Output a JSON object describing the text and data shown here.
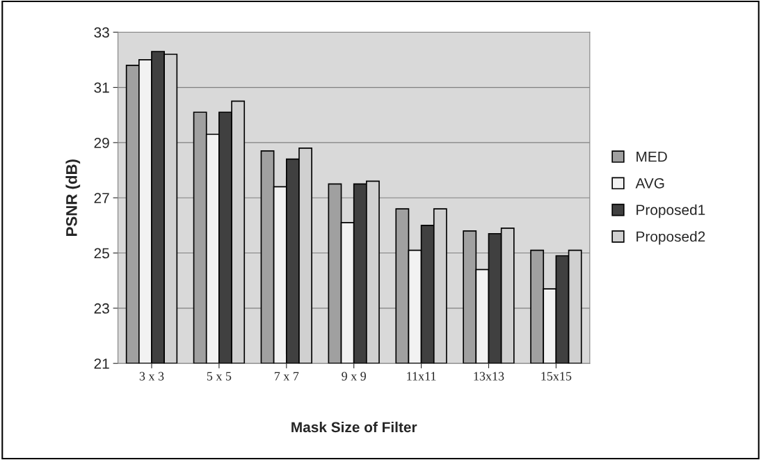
{
  "chart_data": {
    "type": "bar",
    "xlabel": "Mask Size of Filter",
    "ylabel": "PSNR (dB)",
    "categories": [
      "3 x 3",
      "5 x 5",
      "7 x 7",
      "9 x 9",
      "11x11",
      "13x13",
      "15x15"
    ],
    "series": [
      {
        "name": "MED",
        "color": "#a0a0a0",
        "values": [
          31.8,
          30.1,
          28.7,
          27.5,
          26.6,
          25.8,
          25.1
        ]
      },
      {
        "name": "AVG",
        "color": "#f2f2f2",
        "values": [
          32.0,
          29.3,
          27.4,
          26.1,
          25.1,
          24.4,
          23.7
        ]
      },
      {
        "name": "Proposed1",
        "color": "#404040",
        "values": [
          32.3,
          30.1,
          28.4,
          27.5,
          26.0,
          25.7,
          24.9
        ]
      },
      {
        "name": "Proposed2",
        "color": "#d0d0d0",
        "values": [
          32.2,
          30.5,
          28.8,
          27.6,
          26.6,
          25.9,
          25.1
        ]
      }
    ],
    "ylim": [
      21,
      33
    ],
    "yticks": [
      21,
      23,
      25,
      27,
      29,
      31,
      33
    ],
    "grid": "y",
    "legend": "right"
  }
}
